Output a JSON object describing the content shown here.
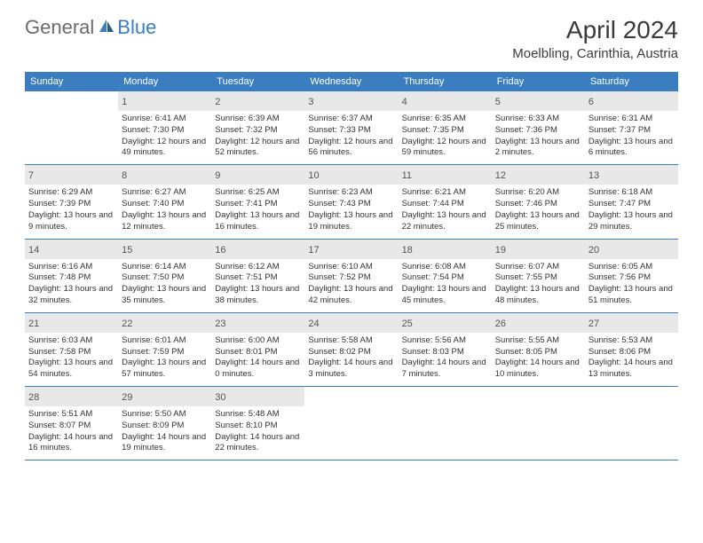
{
  "logo": {
    "text1": "General",
    "text2": "Blue"
  },
  "header": {
    "title": "April 2024",
    "location": "Moelbling, Carinthia, Austria"
  },
  "colors": {
    "accent": "#3a7ec1",
    "dayNumberBg": "#e8e8e8",
    "text": "#333333",
    "headerText": "#ffffff"
  },
  "calendar": {
    "dayNames": [
      "Sunday",
      "Monday",
      "Tuesday",
      "Wednesday",
      "Thursday",
      "Friday",
      "Saturday"
    ],
    "weeks": [
      [
        null,
        {
          "n": "1",
          "sr": "6:41 AM",
          "ss": "7:30 PM",
          "dl": "12 hours and 49 minutes."
        },
        {
          "n": "2",
          "sr": "6:39 AM",
          "ss": "7:32 PM",
          "dl": "12 hours and 52 minutes."
        },
        {
          "n": "3",
          "sr": "6:37 AM",
          "ss": "7:33 PM",
          "dl": "12 hours and 56 minutes."
        },
        {
          "n": "4",
          "sr": "6:35 AM",
          "ss": "7:35 PM",
          "dl": "12 hours and 59 minutes."
        },
        {
          "n": "5",
          "sr": "6:33 AM",
          "ss": "7:36 PM",
          "dl": "13 hours and 2 minutes."
        },
        {
          "n": "6",
          "sr": "6:31 AM",
          "ss": "7:37 PM",
          "dl": "13 hours and 6 minutes."
        }
      ],
      [
        {
          "n": "7",
          "sr": "6:29 AM",
          "ss": "7:39 PM",
          "dl": "13 hours and 9 minutes."
        },
        {
          "n": "8",
          "sr": "6:27 AM",
          "ss": "7:40 PM",
          "dl": "13 hours and 12 minutes."
        },
        {
          "n": "9",
          "sr": "6:25 AM",
          "ss": "7:41 PM",
          "dl": "13 hours and 16 minutes."
        },
        {
          "n": "10",
          "sr": "6:23 AM",
          "ss": "7:43 PM",
          "dl": "13 hours and 19 minutes."
        },
        {
          "n": "11",
          "sr": "6:21 AM",
          "ss": "7:44 PM",
          "dl": "13 hours and 22 minutes."
        },
        {
          "n": "12",
          "sr": "6:20 AM",
          "ss": "7:46 PM",
          "dl": "13 hours and 25 minutes."
        },
        {
          "n": "13",
          "sr": "6:18 AM",
          "ss": "7:47 PM",
          "dl": "13 hours and 29 minutes."
        }
      ],
      [
        {
          "n": "14",
          "sr": "6:16 AM",
          "ss": "7:48 PM",
          "dl": "13 hours and 32 minutes."
        },
        {
          "n": "15",
          "sr": "6:14 AM",
          "ss": "7:50 PM",
          "dl": "13 hours and 35 minutes."
        },
        {
          "n": "16",
          "sr": "6:12 AM",
          "ss": "7:51 PM",
          "dl": "13 hours and 38 minutes."
        },
        {
          "n": "17",
          "sr": "6:10 AM",
          "ss": "7:52 PM",
          "dl": "13 hours and 42 minutes."
        },
        {
          "n": "18",
          "sr": "6:08 AM",
          "ss": "7:54 PM",
          "dl": "13 hours and 45 minutes."
        },
        {
          "n": "19",
          "sr": "6:07 AM",
          "ss": "7:55 PM",
          "dl": "13 hours and 48 minutes."
        },
        {
          "n": "20",
          "sr": "6:05 AM",
          "ss": "7:56 PM",
          "dl": "13 hours and 51 minutes."
        }
      ],
      [
        {
          "n": "21",
          "sr": "6:03 AM",
          "ss": "7:58 PM",
          "dl": "13 hours and 54 minutes."
        },
        {
          "n": "22",
          "sr": "6:01 AM",
          "ss": "7:59 PM",
          "dl": "13 hours and 57 minutes."
        },
        {
          "n": "23",
          "sr": "6:00 AM",
          "ss": "8:01 PM",
          "dl": "14 hours and 0 minutes."
        },
        {
          "n": "24",
          "sr": "5:58 AM",
          "ss": "8:02 PM",
          "dl": "14 hours and 3 minutes."
        },
        {
          "n": "25",
          "sr": "5:56 AM",
          "ss": "8:03 PM",
          "dl": "14 hours and 7 minutes."
        },
        {
          "n": "26",
          "sr": "5:55 AM",
          "ss": "8:05 PM",
          "dl": "14 hours and 10 minutes."
        },
        {
          "n": "27",
          "sr": "5:53 AM",
          "ss": "8:06 PM",
          "dl": "14 hours and 13 minutes."
        }
      ],
      [
        {
          "n": "28",
          "sr": "5:51 AM",
          "ss": "8:07 PM",
          "dl": "14 hours and 16 minutes."
        },
        {
          "n": "29",
          "sr": "5:50 AM",
          "ss": "8:09 PM",
          "dl": "14 hours and 19 minutes."
        },
        {
          "n": "30",
          "sr": "5:48 AM",
          "ss": "8:10 PM",
          "dl": "14 hours and 22 minutes."
        },
        null,
        null,
        null,
        null
      ]
    ]
  },
  "labels": {
    "sunrise": "Sunrise: ",
    "sunset": "Sunset: ",
    "daylight": "Daylight: "
  }
}
